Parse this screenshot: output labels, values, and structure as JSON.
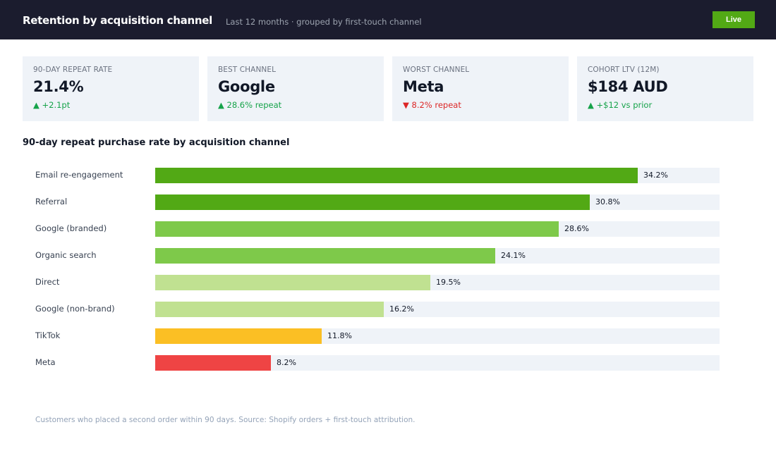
{
  "header": {
    "title": "Retention by acquisition channel",
    "subtitle": "Last 12 months · grouped by first-touch channel",
    "live_label": "Live"
  },
  "kpis": [
    {
      "label": "90-DAY REPEAT RATE",
      "value": "21.4%",
      "delta": "▲ +2.1pt",
      "trend": "up"
    },
    {
      "label": "BEST CHANNEL",
      "value": "Google",
      "delta": "▲ 28.6% repeat",
      "trend": "up"
    },
    {
      "label": "WORST CHANNEL",
      "value": "Meta",
      "delta": "▼ 8.2% repeat",
      "trend": "down"
    },
    {
      "label": "COHORT LTV (12M)",
      "value": "$184 AUD",
      "delta": "▲ +$12 vs prior",
      "trend": "up"
    }
  ],
  "chart_data": {
    "type": "bar",
    "orientation": "horizontal",
    "title": "90-day repeat purchase rate by acquisition channel",
    "categories": [
      "Email re-engagement",
      "Referral",
      "Google (branded)",
      "Organic search",
      "Direct",
      "Google (non-brand)",
      "TikTok",
      "Meta"
    ],
    "values": [
      34.2,
      30.8,
      28.6,
      24.1,
      19.5,
      16.2,
      11.8,
      8.2
    ],
    "labels": [
      "34.2%",
      "30.8%",
      "28.6%",
      "24.1%",
      "19.5%",
      "16.2%",
      "11.8%",
      "8.2%"
    ],
    "colors": [
      "#52a915",
      "#52a915",
      "#7ec94a",
      "#7ec94a",
      "#c0e191",
      "#c0e191",
      "#fbbf24",
      "#ef4444"
    ],
    "xlim": [
      0,
      40
    ],
    "unit": "%"
  },
  "footer": "Customers who placed a second order within 90 days. Source: Shopify orders + first-touch attribution."
}
